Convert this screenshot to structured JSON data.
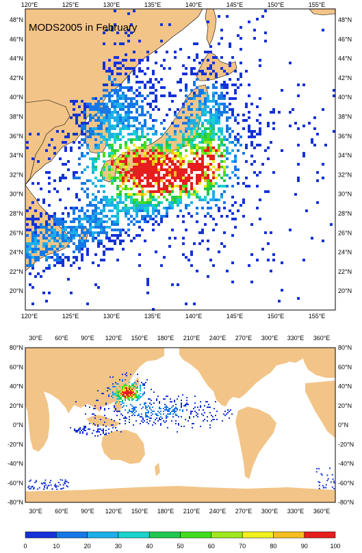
{
  "top_map": {
    "title": "MODS2005 in February",
    "lon_ticks": [
      "120°E",
      "125°E",
      "130°E",
      "135°E",
      "140°E",
      "145°E",
      "150°E",
      "155°E"
    ],
    "lat_ticks": [
      "48°N",
      "46°N",
      "44°N",
      "42°N",
      "40°N",
      "38°N",
      "36°N",
      "34°N",
      "32°N",
      "30°N",
      "28°N",
      "26°N",
      "24°N",
      "22°N",
      "20°N"
    ],
    "lon_range": [
      118,
      157.5
    ],
    "lat_range": [
      18.3,
      49.6
    ]
  },
  "bottom_map": {
    "lon_ticks": [
      "30°E",
      "60°E",
      "90°E",
      "120°E",
      "150°E",
      "180°E",
      "210°E",
      "240°E",
      "270°E",
      "300°E",
      "330°E",
      "360°E"
    ],
    "lat_ticks": [
      "80°N",
      "60°N",
      "40°N",
      "20°N",
      "0°N",
      "-20°N",
      "-40°N",
      "-60°N",
      "-80°N"
    ],
    "lon_range": [
      18,
      375
    ],
    "lat_range": [
      -80,
      80
    ]
  },
  "colorbar": {
    "labels": [
      "0",
      "10",
      "20",
      "30",
      "40",
      "50",
      "60",
      "70",
      "80",
      "90",
      "100"
    ],
    "colors": [
      "#1432d8",
      "#1678e6",
      "#1eaee8",
      "#18d2cc",
      "#1ec850",
      "#42dc1e",
      "#a0e61e",
      "#f0f01e",
      "#f5be1e",
      "#f56e1e",
      "#e61e1e"
    ]
  },
  "colors": {
    "land": "#f2c487",
    "ocean": "#ffffff"
  }
}
